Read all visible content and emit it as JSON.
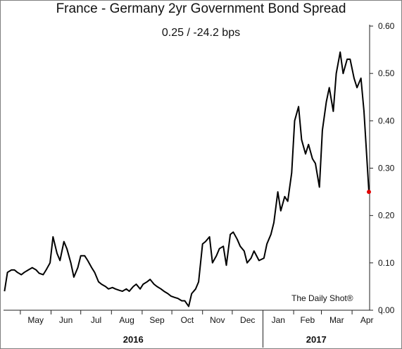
{
  "chart_data": {
    "type": "line",
    "title": "France - Germany 2yr Government Bond Spread",
    "subtitle": "0.25  /  -24.2 bps",
    "annotation": "The Daily Shot®",
    "ylim": [
      0,
      0.6
    ],
    "y_ticks": [
      "0.00",
      "0.10",
      "0.20",
      "0.30",
      "0.40",
      "0.50",
      "0.60"
    ],
    "y_axis_side": "right",
    "x_ticks": [
      "May",
      "Jun",
      "Jul",
      "Aug",
      "Sep",
      "Oct",
      "Nov",
      "Dec",
      "Jan",
      "Feb",
      "Mar",
      "Apr"
    ],
    "year_labels": [
      "2016",
      "2017"
    ],
    "grid": false,
    "last_point_color": "#e00000",
    "line_color": "#000000",
    "series": [
      {
        "x": [
          "2016-04-15",
          "2016-04-18",
          "2016-04-22",
          "2016-04-25",
          "2016-04-28",
          "2016-05-02",
          "2016-05-05",
          "2016-05-09",
          "2016-05-13",
          "2016-05-17",
          "2016-05-20",
          "2016-05-24",
          "2016-05-27",
          "2016-05-31",
          "2016-06-03",
          "2016-06-07",
          "2016-06-10",
          "2016-06-14",
          "2016-06-17",
          "2016-06-21",
          "2016-06-24",
          "2016-06-28",
          "2016-07-01",
          "2016-07-05",
          "2016-07-08",
          "2016-07-12",
          "2016-07-15",
          "2016-07-19",
          "2016-07-22",
          "2016-07-26",
          "2016-07-29",
          "2016-08-02",
          "2016-08-05",
          "2016-08-09",
          "2016-08-12",
          "2016-08-16",
          "2016-08-19",
          "2016-08-23",
          "2016-08-26",
          "2016-08-30",
          "2016-09-02",
          "2016-09-06",
          "2016-09-09",
          "2016-09-13",
          "2016-09-16",
          "2016-09-20",
          "2016-09-23",
          "2016-09-27",
          "2016-09-30",
          "2016-10-04",
          "2016-10-07",
          "2016-10-11",
          "2016-10-14",
          "2016-10-18",
          "2016-10-21",
          "2016-10-25",
          "2016-10-28",
          "2016-11-01",
          "2016-11-04",
          "2016-11-08",
          "2016-11-11",
          "2016-11-15",
          "2016-11-18",
          "2016-11-22",
          "2016-11-25",
          "2016-11-29",
          "2016-12-02",
          "2016-12-06",
          "2016-12-09",
          "2016-12-13",
          "2016-12-16",
          "2016-12-20",
          "2016-12-23",
          "2016-12-28",
          "2017-01-02",
          "2017-01-05",
          "2017-01-09",
          "2017-01-12",
          "2017-01-16",
          "2017-01-19",
          "2017-01-23",
          "2017-01-26",
          "2017-01-30",
          "2017-02-02",
          "2017-02-06",
          "2017-02-09",
          "2017-02-13",
          "2017-02-16",
          "2017-02-20",
          "2017-02-23",
          "2017-02-27",
          "2017-03-02",
          "2017-03-06",
          "2017-03-09",
          "2017-03-13",
          "2017-03-16",
          "2017-03-20",
          "2017-03-23",
          "2017-03-27",
          "2017-03-30",
          "2017-04-03",
          "2017-04-06",
          "2017-04-10",
          "2017-04-13",
          "2017-04-18"
        ],
        "values": [
          0.04,
          0.08,
          0.085,
          0.085,
          0.08,
          0.075,
          0.08,
          0.085,
          0.09,
          0.085,
          0.078,
          0.075,
          0.085,
          0.1,
          0.155,
          0.12,
          0.105,
          0.145,
          0.13,
          0.1,
          0.07,
          0.09,
          0.115,
          0.115,
          0.105,
          0.09,
          0.08,
          0.06,
          0.055,
          0.05,
          0.045,
          0.048,
          0.045,
          0.042,
          0.04,
          0.045,
          0.04,
          0.05,
          0.055,
          0.045,
          0.055,
          0.06,
          0.065,
          0.055,
          0.05,
          0.045,
          0.04,
          0.035,
          0.03,
          0.027,
          0.025,
          0.02,
          0.02,
          0.008,
          0.035,
          0.045,
          0.06,
          0.14,
          0.145,
          0.155,
          0.1,
          0.115,
          0.13,
          0.135,
          0.095,
          0.16,
          0.165,
          0.15,
          0.135,
          0.125,
          0.1,
          0.11,
          0.125,
          0.105,
          0.11,
          0.14,
          0.16,
          0.185,
          0.25,
          0.21,
          0.24,
          0.23,
          0.29,
          0.4,
          0.43,
          0.36,
          0.33,
          0.35,
          0.32,
          0.31,
          0.26,
          0.38,
          0.44,
          0.47,
          0.42,
          0.5,
          0.545,
          0.5,
          0.53,
          0.53,
          0.49,
          0.47,
          0.49,
          0.42,
          0.25
        ]
      }
    ]
  }
}
